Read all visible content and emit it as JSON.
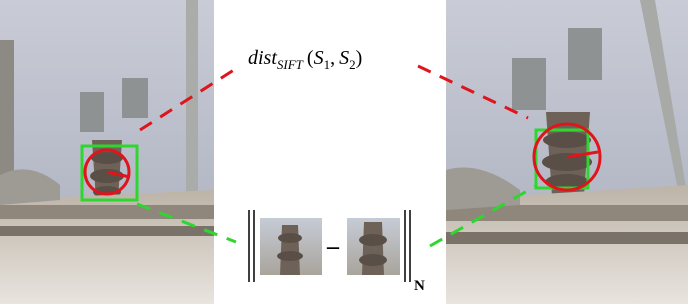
{
  "formula": {
    "function": "dist",
    "subscript": "SIFT",
    "open": "(",
    "arg1": "S",
    "arg1_index": "1",
    "separator": ",",
    "arg2": "S",
    "arg2_index": "2",
    "close": ")"
  },
  "norm": {
    "operator": "–",
    "subscript": "N"
  }
}
